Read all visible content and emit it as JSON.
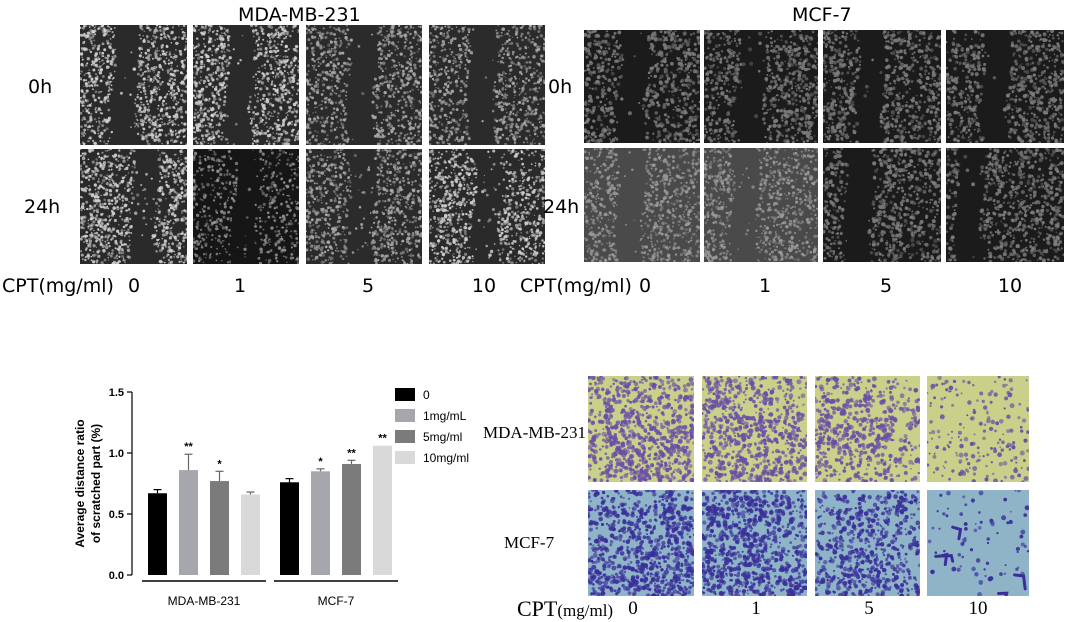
{
  "scratch_assay": {
    "left": {
      "title": "MDA-MB-231",
      "rows": [
        "0h",
        "24h"
      ],
      "cpt_label": "CPT(mg/ml)",
      "doses": [
        "0",
        "1",
        "5",
        "10"
      ]
    },
    "right": {
      "title": "MCF-7",
      "rows": [
        "0h",
        "24h"
      ],
      "cpt_label": "CPT(mg/ml)",
      "doses": [
        "0",
        "1",
        "5",
        "10"
      ]
    },
    "colors": {
      "dark_bg": "#1b1b1b",
      "cells_light": "#cfcfcf",
      "cells_gray": "#6e6e6e"
    }
  },
  "transwell_assay": {
    "rows": [
      "MDA-MB-231",
      "MCF-7"
    ],
    "cpt_label": "CPT",
    "cpt_unit": "(mg/ml)",
    "doses": [
      "0",
      "1",
      "5",
      "10"
    ],
    "colors": {
      "mda_bg": "#c9d08a",
      "mda_cells": "#6a4fa6",
      "mcf_bg": "#8fb4c8",
      "mcf_cells": "#3a2f9a"
    }
  },
  "chart_data": {
    "type": "bar",
    "ylabel": "Average distance ratio\nof scratched part (%)",
    "ylim": [
      0.0,
      1.5
    ],
    "yticks": [
      "0.0",
      "0.5",
      "1.0",
      "1.5"
    ],
    "categories": [
      "MDA-MB-231",
      "MCF-7"
    ],
    "series": [
      {
        "name": "0",
        "color": "#000000",
        "values": [
          0.67,
          0.76
        ],
        "errors": [
          0.03,
          0.03
        ],
        "sig": [
          "",
          ""
        ]
      },
      {
        "name": "1mg/mL",
        "color": "#a6a6ad",
        "values": [
          0.86,
          0.85
        ],
        "errors": [
          0.13,
          0.02
        ],
        "sig": [
          "**",
          "*"
        ]
      },
      {
        "name": "5mg/ml",
        "color": "#7b7b7b",
        "values": [
          0.77,
          0.91
        ],
        "errors": [
          0.08,
          0.03
        ],
        "sig": [
          "*",
          "**"
        ]
      },
      {
        "name": "10mg/ml",
        "color": "#d9d9d9",
        "values": [
          0.66,
          1.06
        ],
        "errors": [
          0.02,
          0.0
        ],
        "sig": [
          "",
          "**"
        ]
      }
    ],
    "legend": "right"
  }
}
